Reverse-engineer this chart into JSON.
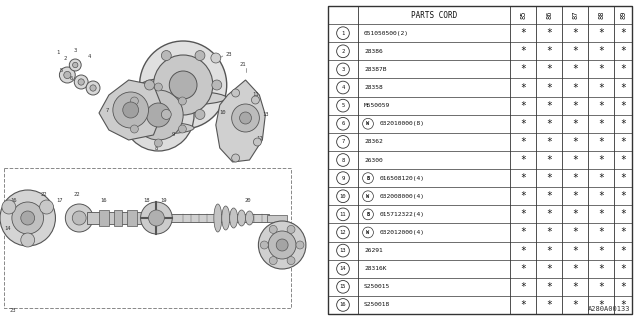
{
  "watermark": "A280A00133",
  "rows": [
    {
      "num": "1",
      "prefix": "",
      "part": "051050500(2)",
      "stars": [
        true,
        true,
        true,
        true,
        true
      ]
    },
    {
      "num": "2",
      "prefix": "",
      "part": "28386",
      "stars": [
        true,
        true,
        true,
        true,
        true
      ]
    },
    {
      "num": "3",
      "prefix": "",
      "part": "28387B",
      "stars": [
        true,
        true,
        true,
        true,
        true
      ]
    },
    {
      "num": "4",
      "prefix": "",
      "part": "28358",
      "stars": [
        true,
        true,
        true,
        true,
        true
      ]
    },
    {
      "num": "5",
      "prefix": "",
      "part": "M550059",
      "stars": [
        true,
        true,
        true,
        true,
        true
      ]
    },
    {
      "num": "6",
      "prefix": "W",
      "part": "032010000(8)",
      "stars": [
        true,
        true,
        true,
        true,
        true
      ]
    },
    {
      "num": "7",
      "prefix": "",
      "part": "28362",
      "stars": [
        true,
        true,
        true,
        true,
        true
      ]
    },
    {
      "num": "8",
      "prefix": "",
      "part": "26300",
      "stars": [
        true,
        true,
        true,
        true,
        true
      ]
    },
    {
      "num": "9",
      "prefix": "B",
      "part": "016508120(4)",
      "stars": [
        true,
        true,
        true,
        true,
        true
      ]
    },
    {
      "num": "10",
      "prefix": "W",
      "part": "032008000(4)",
      "stars": [
        true,
        true,
        true,
        true,
        true
      ]
    },
    {
      "num": "11",
      "prefix": "B",
      "part": "015712322(4)",
      "stars": [
        true,
        true,
        true,
        true,
        true
      ]
    },
    {
      "num": "12",
      "prefix": "W",
      "part": "032012000(4)",
      "stars": [
        true,
        true,
        true,
        true,
        true
      ]
    },
    {
      "num": "13",
      "prefix": "",
      "part": "26291",
      "stars": [
        true,
        true,
        true,
        true,
        true
      ]
    },
    {
      "num": "14",
      "prefix": "",
      "part": "28316K",
      "stars": [
        true,
        true,
        true,
        true,
        true
      ]
    },
    {
      "num": "15",
      "prefix": "",
      "part": "S250015",
      "stars": [
        true,
        true,
        true,
        true,
        true
      ]
    },
    {
      "num": "16",
      "prefix": "",
      "part": "S250018",
      "stars": [
        true,
        true,
        true,
        true,
        true
      ]
    }
  ],
  "year_cols": [
    "85",
    "86",
    "87",
    "88",
    "89"
  ],
  "bg_color": "#ffffff",
  "lc": "#555555",
  "fc_light": "#e8e8e8",
  "fc_mid": "#cccccc",
  "fc_dark": "#aaaaaa"
}
